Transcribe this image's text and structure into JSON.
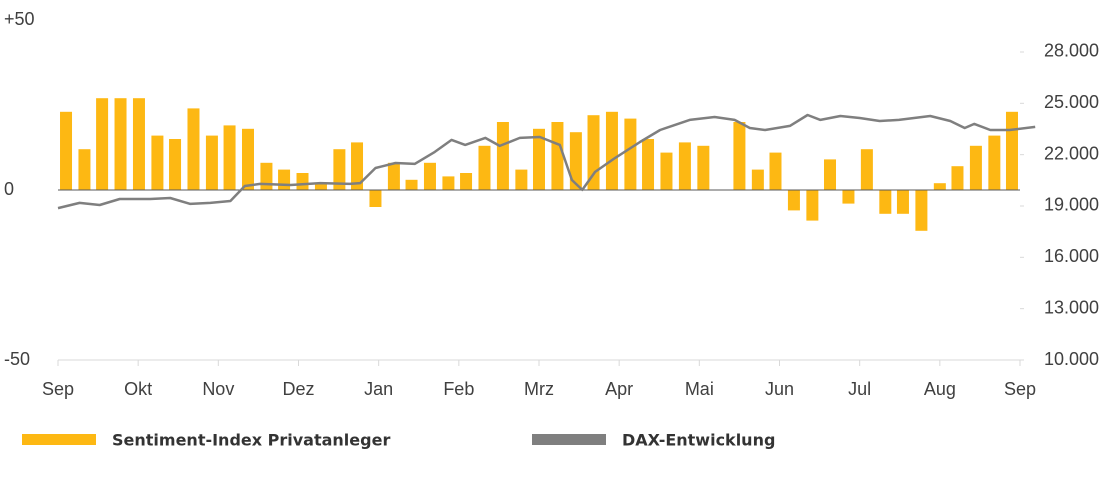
{
  "chart_data": {
    "type": "bar",
    "xlim": [
      0,
      12
    ],
    "xticks": [
      {
        "value": 0,
        "label": "Sep"
      },
      {
        "value": 1,
        "label": "Okt"
      },
      {
        "value": 2,
        "label": "Nov"
      },
      {
        "value": 3,
        "label": "Dez"
      },
      {
        "value": 4,
        "label": "Jan"
      },
      {
        "value": 5,
        "label": "Feb"
      },
      {
        "value": 6,
        "label": "Mrz"
      },
      {
        "value": 7,
        "label": "Apr"
      },
      {
        "value": 8,
        "label": "Mai"
      },
      {
        "value": 9,
        "label": "Jun"
      },
      {
        "value": 10,
        "label": "Jul"
      },
      {
        "value": 11,
        "label": "Aug"
      },
      {
        "value": 12,
        "label": "Sep"
      }
    ],
    "ylim": [
      -50,
      50
    ],
    "yticks": [
      {
        "value": 50,
        "label": "+50"
      },
      0,
      -50
    ],
    "y2lim": [
      10000,
      29870
    ],
    "y2ticks": [
      {
        "value": 10000,
        "label": "10.000"
      },
      {
        "value": 13000,
        "label": "13.000"
      },
      {
        "value": 16000,
        "label": "16.000"
      },
      {
        "value": 19000,
        "label": "19.000"
      },
      {
        "value": 22000,
        "label": "22.000"
      },
      {
        "value": 25000,
        "label": "25.000"
      },
      {
        "value": 28000,
        "label": "28.000"
      }
    ],
    "series": [
      {
        "name": "Sentiment-Index Privatanleger",
        "type": "bar",
        "color": "#fdb813",
        "x": [
          0.1,
          0.33,
          0.55,
          0.78,
          1.01,
          1.24,
          1.46,
          1.69,
          1.92,
          2.14,
          2.37,
          2.6,
          2.82,
          3.05,
          3.28,
          3.51,
          3.73,
          3.96,
          4.19,
          4.41,
          4.64,
          4.87,
          5.09,
          5.32,
          5.55,
          5.78,
          6.0,
          6.23,
          6.46,
          6.68,
          6.91,
          7.14,
          7.36,
          7.59,
          7.82,
          8.05,
          8.27,
          8.5,
          8.73,
          8.95,
          9.18,
          9.41,
          9.63,
          9.86,
          10.09,
          10.32,
          10.54,
          10.77,
          11.0,
          11.22,
          11.45,
          11.68,
          11.9
        ],
        "values": [
          23,
          12,
          27,
          27,
          27,
          16,
          15,
          24,
          16,
          19,
          18,
          8,
          6,
          5,
          2,
          12,
          14,
          -5,
          8,
          3,
          8,
          4,
          5,
          13,
          20,
          6,
          18,
          20,
          17,
          22,
          23,
          21,
          15,
          11,
          14,
          13,
          null,
          20,
          6,
          11,
          -6,
          -9,
          9,
          -4,
          12,
          -7,
          -7,
          -12,
          2,
          7,
          13,
          16,
          23
        ]
      },
      {
        "name": "DAX-Entwicklung",
        "type": "line",
        "color": "#7f7f7f",
        "axis": "y2",
        "x": [
          0,
          0.27,
          0.52,
          0.77,
          1.15,
          1.4,
          1.65,
          1.9,
          2.15,
          2.33,
          2.52,
          2.9,
          3.27,
          3.64,
          3.77,
          3.96,
          4.21,
          4.45,
          4.7,
          4.91,
          5.08,
          5.33,
          5.51,
          5.76,
          6.01,
          6.26,
          6.41,
          6.54,
          6.7,
          6.95,
          7.26,
          7.51,
          7.88,
          8.19,
          8.44,
          8.63,
          8.82,
          9.13,
          9.35,
          9.51,
          9.76,
          10.0,
          10.25,
          10.49,
          10.88,
          11.13,
          11.31,
          11.43,
          11.63,
          11.87,
          12.19
        ],
        "values": [
          18880,
          19180,
          19060,
          19410,
          19410,
          19470,
          19120,
          19180,
          19290,
          20170,
          20290,
          20230,
          20340,
          20290,
          20340,
          21220,
          21510,
          21460,
          22160,
          22860,
          22570,
          22980,
          22510,
          22980,
          23030,
          22570,
          20520,
          19940,
          20990,
          21810,
          22740,
          23440,
          24030,
          24200,
          24030,
          23560,
          23440,
          23680,
          24320,
          24030,
          24260,
          24140,
          23970,
          24030,
          24260,
          23970,
          23560,
          23800,
          23440,
          23440,
          23620
        ]
      }
    ]
  }
}
